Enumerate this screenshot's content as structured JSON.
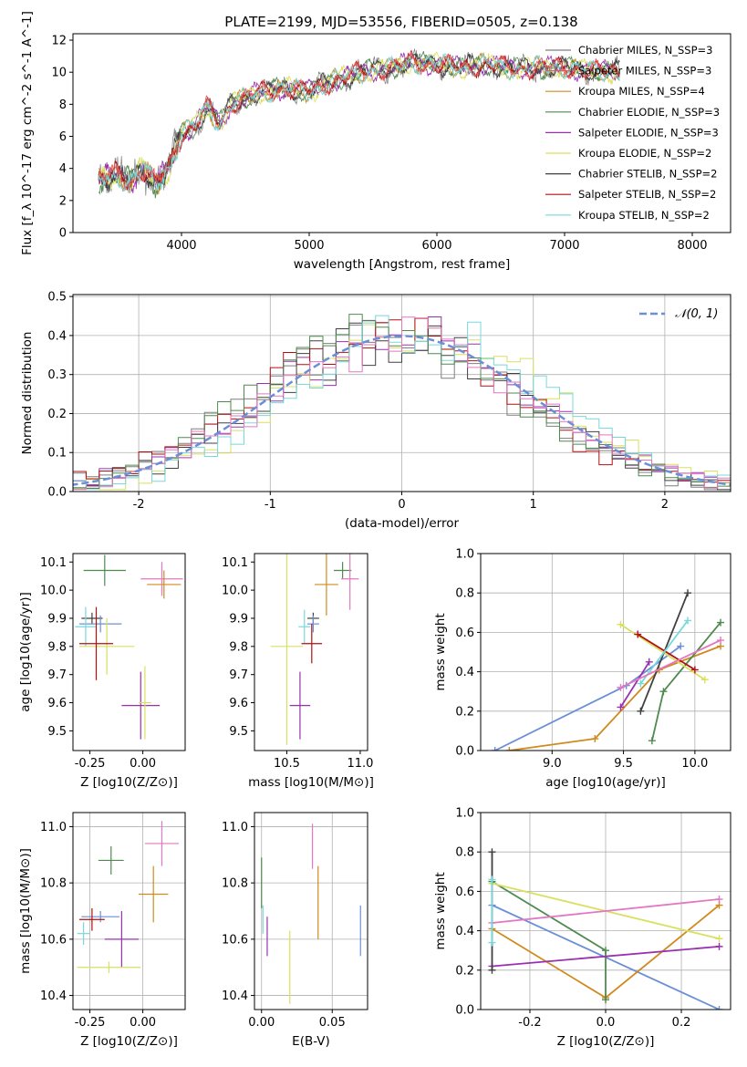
{
  "figure": {
    "title": "PLATE=2199, MJD=53556, FIBERID=0505, z=0.138"
  },
  "legend_colors": [
    "#7f7f7f",
    "#e35a5a",
    "#d08a1e",
    "#4f8a4f",
    "#9a30b0",
    "#d8e060",
    "#404040",
    "#b01010",
    "#78d8dc"
  ],
  "chart_data": [
    {
      "id": "spectrum",
      "type": "line",
      "title": "PLATE=2199, MJD=53556, FIBERID=0505, z=0.138",
      "xlabel": "wavelength [Angstrom, rest frame]",
      "ylabel": "Flux [f_λ 10^-17 erg cm^-2 s^-1 A^-1]",
      "xlim": [
        3150,
        8300
      ],
      "ylim": [
        0,
        12.4
      ],
      "xticks": [
        4000,
        5000,
        6000,
        7000,
        8000
      ],
      "yticks": [
        0,
        2,
        4,
        6,
        8,
        10,
        12
      ],
      "grid": false,
      "legend_position": "right",
      "data_range": [
        3350,
        7430
      ],
      "anchors": {
        "x": [
          3350,
          3500,
          3600,
          3700,
          3800,
          3900,
          4000,
          4100,
          4200,
          4300,
          4400,
          4600,
          4800,
          5000,
          5200,
          5400,
          5600,
          5800,
          6000,
          6200,
          6400,
          6600,
          6800,
          7000,
          7200,
          7430
        ],
        "y": [
          3.3,
          3.6,
          3.2,
          4.0,
          3.0,
          4.0,
          6.2,
          6.6,
          7.8,
          6.8,
          8.1,
          8.7,
          9.0,
          8.8,
          9.5,
          10.0,
          10.2,
          10.6,
          10.5,
          10.3,
          10.5,
          10.2,
          10.3,
          10.3,
          10.1,
          10.0
        ]
      },
      "series": [
        {
          "name": "Chabrier MILES, N_SSP=3",
          "color": "#7f7f7f"
        },
        {
          "name": "Salpeter MILES, N_SSP=3",
          "color": "#e35a5a"
        },
        {
          "name": "Kroupa MILES, N_SSP=4",
          "color": "#d08a1e"
        },
        {
          "name": "Chabrier ELODIE, N_SSP=3",
          "color": "#4f8a4f"
        },
        {
          "name": "Salpeter ELODIE, N_SSP=3",
          "color": "#9a30b0"
        },
        {
          "name": "Kroupa ELODIE, N_SSP=2",
          "color": "#d8e060"
        },
        {
          "name": "Chabrier STELIB, N_SSP=2",
          "color": "#404040"
        },
        {
          "name": "Salpeter STELIB, N_SSP=2",
          "color": "#b01010"
        },
        {
          "name": "Kroupa STELIB, N_SSP=2",
          "color": "#78d8dc"
        }
      ]
    },
    {
      "id": "residuals",
      "type": "line",
      "xlabel": "(data-model)/error",
      "ylabel": "Normed distribution",
      "xlim": [
        -2.5,
        2.5
      ],
      "ylim": [
        0,
        0.505
      ],
      "xticks": [
        -2,
        -1,
        0,
        1,
        2
      ],
      "yticks": [
        0.0,
        0.1,
        0.2,
        0.3,
        0.4,
        0.5
      ],
      "grid": true,
      "legend_position": "top-right",
      "normal_curve": {
        "label": "𝒩(0, 1)",
        "color": "#6b8fd6",
        "mean": 0,
        "sigma": 1
      },
      "histogram_colors": [
        "#7f7f7f",
        "#9a30b0",
        "#d8e060",
        "#b01010",
        "#404040",
        "#78d8dc",
        "#4f8a4f",
        "#e377c2"
      ]
    },
    {
      "id": "age_vs_Z",
      "type": "scatter",
      "xlabel": "Z [log10(Z/Z⊙)]",
      "ylabel": "age  [log10(age/yr)]",
      "xlim": [
        -0.33,
        0.2
      ],
      "ylim": [
        9.43,
        10.13
      ],
      "xticks": [
        -0.25,
        0.0
      ],
      "yticks": [
        9.5,
        9.6,
        9.7,
        9.8,
        9.9,
        10.0,
        10.1
      ],
      "grid": false,
      "points": [
        {
          "x": -0.18,
          "y": 10.07,
          "xerr": 0.1,
          "yerr": 0.055,
          "color": "#4f8a4f"
        },
        {
          "x": 0.09,
          "y": 10.04,
          "xerr": 0.1,
          "yerr": 0.06,
          "color": "#e377c2"
        },
        {
          "x": 0.1,
          "y": 10.02,
          "xerr": 0.08,
          "yerr": 0.05,
          "color": "#d08a1e"
        },
        {
          "x": -0.24,
          "y": 9.9,
          "xerr": 0.05,
          "yerr": 0.02,
          "color": "#404040"
        },
        {
          "x": -0.2,
          "y": 9.88,
          "xerr": 0.1,
          "yerr": 0.03,
          "color": "#6b8fd6"
        },
        {
          "x": -0.27,
          "y": 9.87,
          "xerr": 0.05,
          "yerr": 0.07,
          "color": "#78d8dc"
        },
        {
          "x": -0.17,
          "y": 9.8,
          "xerr": 0.13,
          "yerr": 0.1,
          "color": "#d8e060"
        },
        {
          "x": -0.22,
          "y": 9.81,
          "xerr": 0.08,
          "yerr": 0.13,
          "color": "#b01010"
        },
        {
          "x": -0.01,
          "y": 9.59,
          "xerr": 0.09,
          "yerr": 0.12,
          "color": "#9a30b0"
        },
        {
          "x": 0.01,
          "y": 9.6,
          "xerr": 0.03,
          "yerr": 0.13,
          "color": "#d8e060"
        }
      ]
    },
    {
      "id": "age_vs_mass",
      "type": "scatter",
      "xlabel": "mass [log10(M/M⊙)]",
      "ylabel": "",
      "xlim": [
        10.28,
        11.05
      ],
      "ylim": [
        9.43,
        10.13
      ],
      "xticks": [
        10.5,
        11.0
      ],
      "yticks": [
        9.5,
        9.6,
        9.7,
        9.8,
        9.9,
        10.0,
        10.1
      ],
      "grid": false,
      "points": [
        {
          "x": 10.88,
          "y": 10.07,
          "xerr": 0.06,
          "yerr": 0.03,
          "color": "#4f8a4f"
        },
        {
          "x": 10.93,
          "y": 10.04,
          "xerr": 0.06,
          "yerr": 0.11,
          "color": "#e377c2"
        },
        {
          "x": 10.77,
          "y": 10.02,
          "xerr": 0.08,
          "yerr": 0.11,
          "color": "#d08a1e"
        },
        {
          "x": 10.68,
          "y": 9.9,
          "xerr": 0.04,
          "yerr": 0.02,
          "color": "#404040"
        },
        {
          "x": 10.68,
          "y": 9.88,
          "xerr": 0.04,
          "yerr": 0.03,
          "color": "#6b8fd6"
        },
        {
          "x": 10.62,
          "y": 9.87,
          "xerr": 0.04,
          "yerr": 0.06,
          "color": "#78d8dc"
        },
        {
          "x": 10.67,
          "y": 9.81,
          "xerr": 0.07,
          "yerr": 0.07,
          "color": "#b01010"
        },
        {
          "x": 10.5,
          "y": 9.8,
          "xerr": 0.11,
          "yerr": 0.35,
          "color": "#d8e060"
        },
        {
          "x": 10.59,
          "y": 9.59,
          "xerr": 0.07,
          "yerr": 0.12,
          "color": "#9a30b0"
        }
      ]
    },
    {
      "id": "mass_weight_vs_age",
      "type": "line",
      "xlabel": "age  [log10(age/yr)]",
      "ylabel": "mass weight",
      "xlim": [
        8.5,
        10.25
      ],
      "ylim": [
        0,
        1.0
      ],
      "xticks": [
        9.0,
        9.5,
        10.0
      ],
      "yticks": [
        0.0,
        0.2,
        0.4,
        0.6,
        0.8,
        1.0
      ],
      "grid": true,
      "series": [
        {
          "color": "#6b8fd6",
          "x": [
            8.6,
            9.52,
            9.9
          ],
          "y": [
            0.0,
            0.33,
            0.53
          ]
        },
        {
          "color": "#d08a1e",
          "x": [
            8.7,
            9.3,
            9.75,
            10.18
          ],
          "y": [
            0.0,
            0.06,
            0.41,
            0.53
          ]
        },
        {
          "color": "#4f8a4f",
          "x": [
            9.7,
            9.78,
            10.18
          ],
          "y": [
            0.05,
            0.3,
            0.65
          ]
        },
        {
          "color": "#9a30b0",
          "x": [
            9.48,
            9.68
          ],
          "y": [
            0.22,
            0.45
          ]
        },
        {
          "color": "#d8e060",
          "x": [
            9.48,
            10.07
          ],
          "y": [
            0.64,
            0.36
          ]
        },
        {
          "color": "#404040",
          "x": [
            9.62,
            9.95
          ],
          "y": [
            0.2,
            0.8
          ]
        },
        {
          "color": "#b01010",
          "x": [
            9.6,
            10.0
          ],
          "y": [
            0.59,
            0.41
          ]
        },
        {
          "color": "#78d8dc",
          "x": [
            9.62,
            9.95
          ],
          "y": [
            0.34,
            0.66
          ]
        },
        {
          "color": "#e377c2",
          "x": [
            9.48,
            10.18
          ],
          "y": [
            0.32,
            0.56
          ]
        }
      ]
    },
    {
      "id": "mass_vs_Z",
      "type": "scatter",
      "xlabel": "Z [log10(Z/Z⊙)]",
      "ylabel": "mass [log10(M/M⊙)]",
      "xlim": [
        -0.33,
        0.2
      ],
      "ylim": [
        10.35,
        11.05
      ],
      "xticks": [
        -0.25,
        0.0
      ],
      "yticks": [
        10.4,
        10.6,
        10.8,
        11.0
      ],
      "grid": true,
      "points": [
        {
          "x": -0.15,
          "y": 10.88,
          "xerr": 0.06,
          "yerr": 0.05,
          "color": "#4f8a4f"
        },
        {
          "x": 0.09,
          "y": 10.94,
          "xerr": 0.08,
          "yerr": 0.08,
          "color": "#e377c2"
        },
        {
          "x": 0.05,
          "y": 10.76,
          "xerr": 0.07,
          "yerr": 0.1,
          "color": "#d08a1e"
        },
        {
          "x": -0.2,
          "y": 10.68,
          "xerr": 0.09,
          "yerr": 0.02,
          "color": "#6b8fd6"
        },
        {
          "x": -0.24,
          "y": 10.67,
          "xerr": 0.06,
          "yerr": 0.04,
          "color": "#b01010"
        },
        {
          "x": -0.28,
          "y": 10.62,
          "xerr": 0.03,
          "yerr": 0.04,
          "color": "#78d8dc"
        },
        {
          "x": -0.1,
          "y": 10.6,
          "xerr": 0.08,
          "yerr": 0.1,
          "color": "#9a30b0"
        },
        {
          "x": -0.16,
          "y": 10.5,
          "xerr": 0.15,
          "yerr": 0.02,
          "color": "#d8e060"
        }
      ]
    },
    {
      "id": "mass_vs_ebv",
      "type": "scatter",
      "xlabel": "E(B-V)",
      "ylabel": "",
      "xlim": [
        -0.005,
        0.075
      ],
      "ylim": [
        10.35,
        11.05
      ],
      "xticks": [
        0.0,
        0.05
      ],
      "yticks": [
        10.4,
        10.6,
        10.8,
        11.0
      ],
      "grid": true,
      "points": [
        {
          "x": 0.0,
          "y": 10.8,
          "xerr": 0,
          "yerr": 0.09,
          "color": "#4f8a4f"
        },
        {
          "x": 0.036,
          "y": 10.93,
          "xerr": 0,
          "yerr": 0.08,
          "color": "#e377c2"
        },
        {
          "x": 0.04,
          "y": 10.73,
          "xerr": 0,
          "yerr": 0.13,
          "color": "#d08a1e"
        },
        {
          "x": 0.07,
          "y": 10.63,
          "xerr": 0,
          "yerr": 0.09,
          "color": "#6b8fd6"
        },
        {
          "x": 0.001,
          "y": 10.67,
          "xerr": 0,
          "yerr": 0.05,
          "color": "#78d8dc"
        },
        {
          "x": 0.004,
          "y": 10.61,
          "xerr": 0,
          "yerr": 0.07,
          "color": "#9a30b0"
        },
        {
          "x": 0.02,
          "y": 10.5,
          "xerr": 0,
          "yerr": 0.13,
          "color": "#d8e060"
        }
      ]
    },
    {
      "id": "mass_weight_vs_Z",
      "type": "line",
      "xlabel": "Z [log10(Z/Z⊙)]",
      "ylabel": "mass weight",
      "xlim": [
        -0.33,
        0.33
      ],
      "ylim": [
        0,
        1.0
      ],
      "xticks": [
        -0.2,
        0.0,
        0.2
      ],
      "yticks": [
        0.0,
        0.2,
        0.4,
        0.6,
        0.8,
        1.0
      ],
      "grid": true,
      "series": [
        {
          "color": "#6b8fd6",
          "x": [
            -0.3,
            0.3
          ],
          "y": [
            0.53,
            0.0
          ]
        },
        {
          "color": "#d08a1e",
          "x": [
            -0.3,
            0.0,
            0.3
          ],
          "y": [
            0.41,
            0.06,
            0.53
          ]
        },
        {
          "color": "#4f8a4f",
          "x": [
            -0.3,
            0.0,
            0.0
          ],
          "y": [
            0.65,
            0.3,
            0.05
          ]
        },
        {
          "color": "#9a30b0",
          "x": [
            -0.3,
            0.3
          ],
          "y": [
            0.22,
            0.32
          ]
        },
        {
          "color": "#d8e060",
          "x": [
            -0.3,
            0.3
          ],
          "y": [
            0.64,
            0.36
          ]
        },
        {
          "color": "#e377c2",
          "x": [
            -0.3,
            0.3
          ],
          "y": [
            0.44,
            0.56
          ]
        },
        {
          "color": "#404040",
          "x": [
            -0.3,
            -0.3
          ],
          "y": [
            0.2,
            0.8
          ]
        },
        {
          "color": "#78d8dc",
          "x": [
            -0.3,
            -0.3
          ],
          "y": [
            0.34,
            0.66
          ]
        }
      ]
    }
  ]
}
